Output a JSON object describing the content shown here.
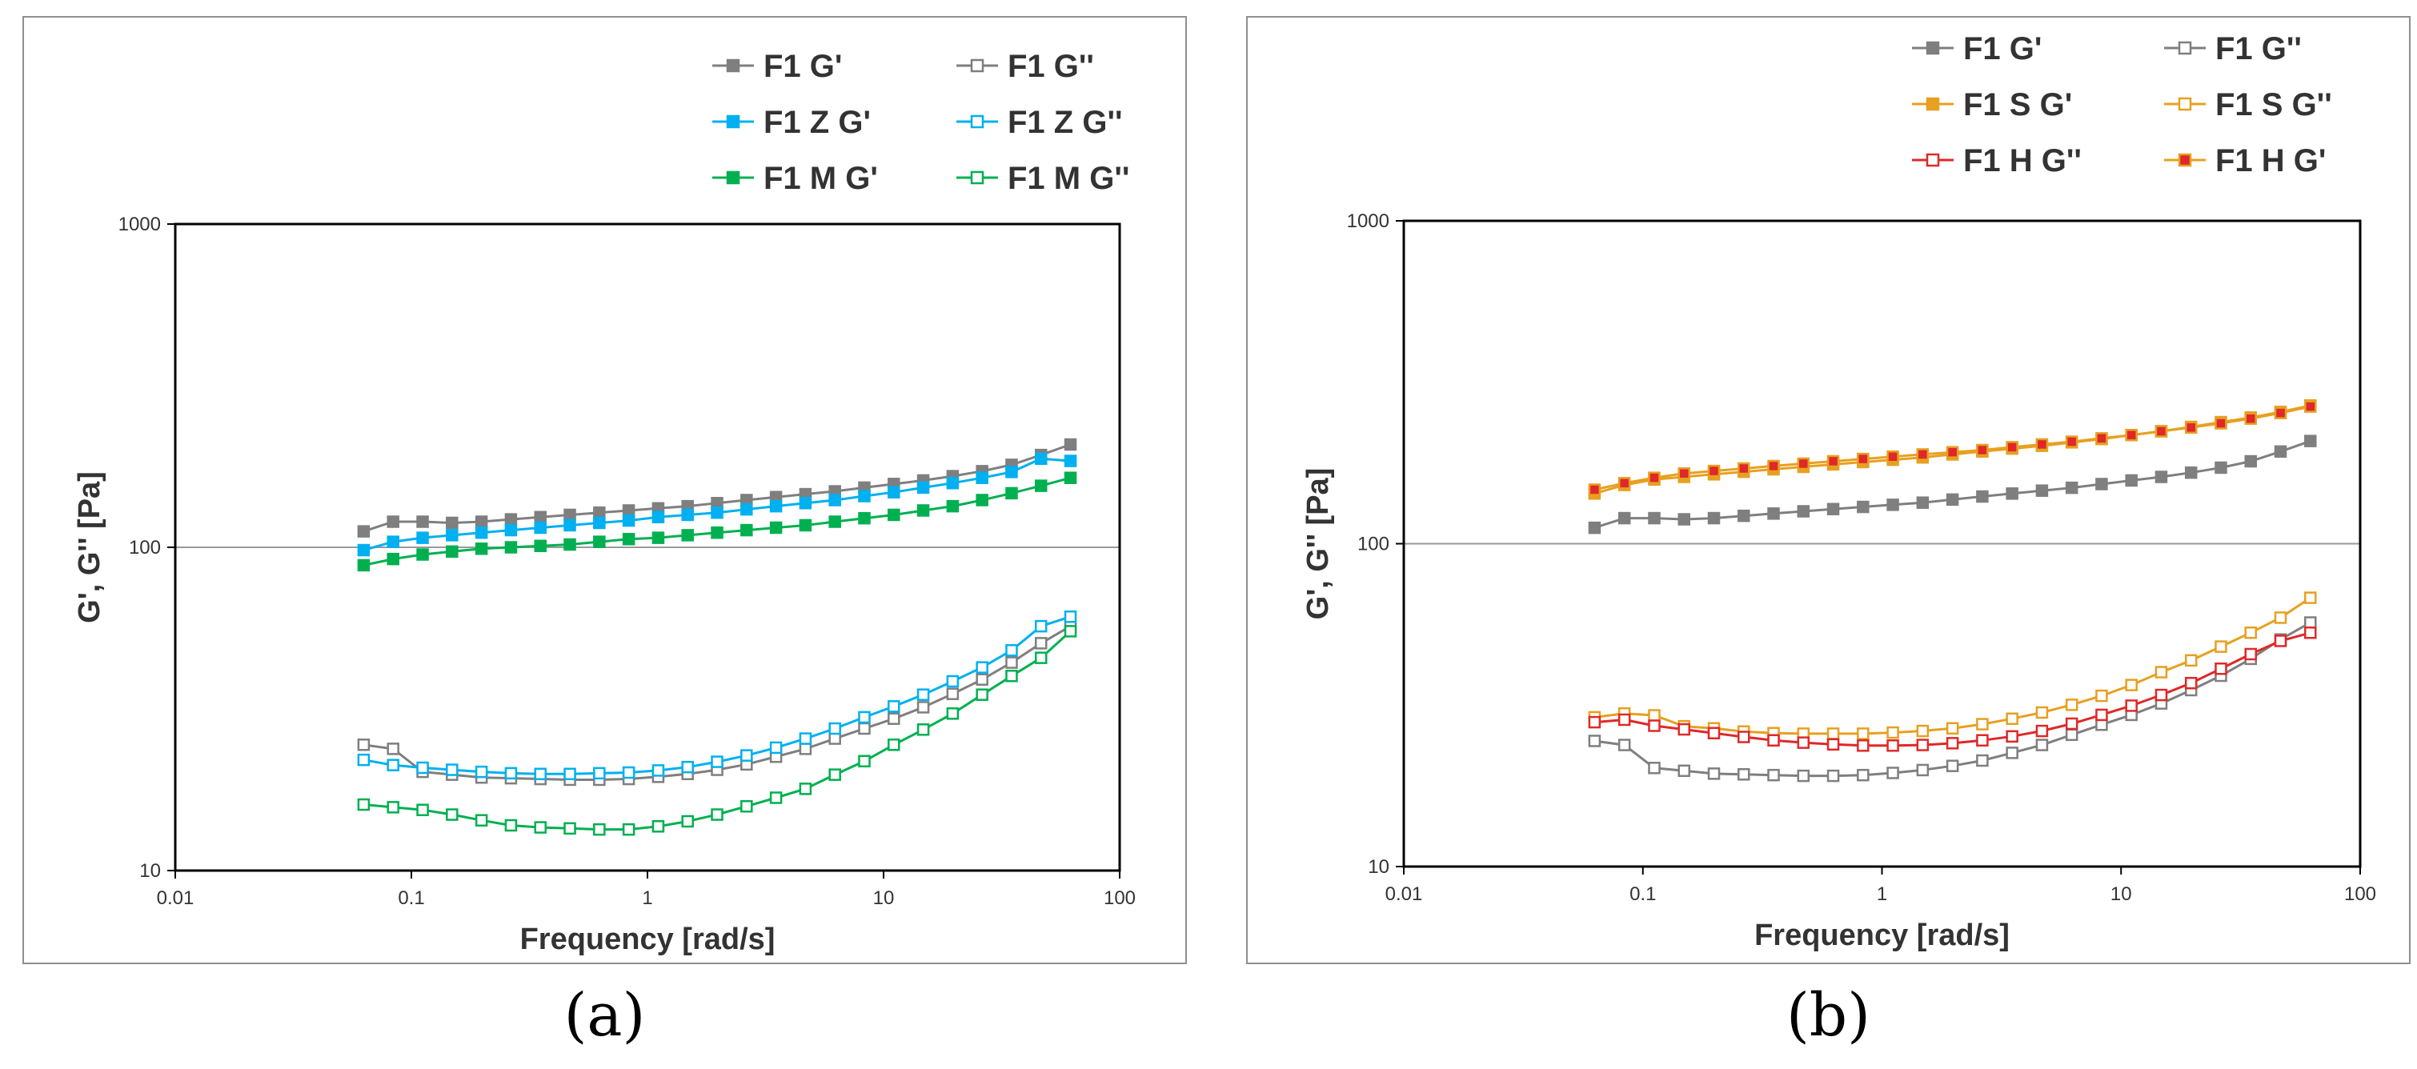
{
  "panels": [
    {
      "caption": "(a)",
      "chart_data": {
        "type": "line",
        "xscale": "log",
        "yscale": "log",
        "xlim": [
          0.01,
          100
        ],
        "ylim": [
          10,
          1000
        ],
        "xlabel": "Frequency [rad/s]",
        "ylabel": "G', G'' [Pa]",
        "x_ticks": [
          "0.01",
          "0.1",
          "1",
          "10",
          "100"
        ],
        "y_ticks": [
          "10",
          "100",
          "1000"
        ],
        "gridlines_y": [
          100
        ],
        "legend_position": "top-right",
        "x": [
          0.0628,
          0.0837,
          0.1116,
          0.1487,
          0.1982,
          0.2641,
          0.352,
          0.4691,
          0.6252,
          0.8332,
          1.1104,
          1.4798,
          1.9722,
          2.6283,
          3.5028,
          4.6681,
          6.2212,
          8.291,
          11.049,
          14.725,
          19.624,
          26.153,
          34.854,
          46.45,
          61.904
        ],
        "series": [
          {
            "name": "F1 G'",
            "color": "#7f7f7f",
            "filled": true,
            "values": [
              112,
              120,
              120,
              119,
              120,
              122,
              124,
              126,
              128,
              130,
              132,
              134,
              137,
              140,
              143,
              146,
              149,
              153,
              157,
              161,
              166,
              172,
              180,
              193,
              208
            ]
          },
          {
            "name": "F1 G''",
            "color": "#7f7f7f",
            "filled": false,
            "values": [
              24.5,
              23.8,
              20.2,
              19.8,
              19.4,
              19.3,
              19.2,
              19.1,
              19.1,
              19.2,
              19.5,
              19.9,
              20.5,
              21.3,
              22.5,
              23.8,
              25.6,
              27.5,
              29.5,
              32,
              35.2,
              39,
              44,
              50.5,
              57
            ]
          },
          {
            "name": "F1 Z G'",
            "color": "#00b0f0",
            "filled": true,
            "values": [
              98,
              104,
              107,
              109,
              111,
              113,
              115,
              117,
              119,
              121,
              124,
              126,
              128,
              131,
              134,
              137,
              140,
              144,
              148,
              153,
              158,
              164,
              171,
              188,
              185
            ]
          },
          {
            "name": "F1 Z G''",
            "color": "#00b0f0",
            "filled": false,
            "values": [
              22,
              21.2,
              20.8,
              20.5,
              20.2,
              20.0,
              19.9,
              19.9,
              20.0,
              20.1,
              20.4,
              20.9,
              21.7,
              22.7,
              24,
              25.6,
              27.5,
              29.8,
              32.2,
              35,
              38.5,
              42.5,
              48,
              57,
              61
            ]
          },
          {
            "name": "F1 M G'",
            "color": "#00b050",
            "filled": true,
            "values": [
              88,
              92,
              95,
              97,
              99,
              100,
              101,
              102,
              104,
              106,
              107,
              109,
              111,
              113,
              115,
              117,
              120,
              123,
              126,
              130,
              134,
              140,
              147,
              155,
              164
            ]
          },
          {
            "name": "F1 M G''",
            "color": "#00b050",
            "filled": false,
            "values": [
              16,
              15.7,
              15.4,
              14.9,
              14.3,
              13.8,
              13.6,
              13.5,
              13.4,
              13.4,
              13.7,
              14.2,
              14.9,
              15.8,
              16.8,
              17.9,
              19.8,
              21.8,
              24.5,
              27.3,
              30.6,
              35,
              40,
              45.5,
              55
            ]
          }
        ],
        "legend_order": [
          0,
          1,
          2,
          3,
          4,
          5
        ]
      }
    },
    {
      "caption": "(b)",
      "chart_data": {
        "type": "line",
        "xscale": "log",
        "yscale": "log",
        "xlim": [
          0.01,
          100
        ],
        "ylim": [
          10,
          1000
        ],
        "xlabel": "Frequency [rad/s]",
        "ylabel": "G', G'' [Pa]",
        "x_ticks": [
          "0.01",
          "0.1",
          "1",
          "10",
          "100"
        ],
        "y_ticks": [
          "10",
          "100",
          "1000"
        ],
        "gridlines_y": [
          100
        ],
        "legend_position": "top-right",
        "x": [
          0.0628,
          0.0837,
          0.1116,
          0.1487,
          0.1982,
          0.2641,
          0.352,
          0.4691,
          0.6252,
          0.8332,
          1.1104,
          1.4798,
          1.9722,
          2.6283,
          3.5028,
          4.6681,
          6.2212,
          8.291,
          11.049,
          14.725,
          19.624,
          26.153,
          34.854,
          46.45,
          61.904
        ],
        "series": [
          {
            "name": "F1 G'",
            "color": "#7f7f7f",
            "filled": true,
            "fill": "#7f7f7f",
            "values": [
              112,
              120,
              120,
              119,
              120,
              122,
              124,
              126,
              128,
              130,
              132,
              134,
              137,
              140,
              143,
              146,
              149,
              153,
              157,
              161,
              166,
              172,
              180,
              193,
              208
            ]
          },
          {
            "name": "F1 G''",
            "color": "#7f7f7f",
            "filled": false,
            "fill": "#ffffff",
            "values": [
              24.5,
              23.8,
              20.2,
              19.8,
              19.4,
              19.3,
              19.2,
              19.1,
              19.1,
              19.2,
              19.5,
              19.9,
              20.5,
              21.3,
              22.5,
              23.8,
              25.6,
              27.5,
              29.5,
              32,
              35.2,
              39,
              44,
              50.5,
              57
            ]
          },
          {
            "name": "F1 S G'",
            "color": "#e7a020",
            "filled": true,
            "fill": "#e7a020",
            "values": [
              143,
              152,
              158,
              161,
              164,
              167,
              170,
              173,
              176,
              179,
              182,
              185,
              189,
              193,
              197,
              201,
              206,
              211,
              217,
              223,
              230,
              238,
              246,
              256,
              268
            ]
          },
          {
            "name": "F1 S G''",
            "color": "#e7a020",
            "filled": false,
            "fill": "#ffffff",
            "values": [
              29,
              29.8,
              29.4,
              27.2,
              26.8,
              26.2,
              25.9,
              25.8,
              25.8,
              25.8,
              26.0,
              26.3,
              26.8,
              27.6,
              28.7,
              30,
              31.7,
              33.8,
              36.5,
              40,
              43.5,
              48,
              53,
              59,
              68
            ]
          },
          {
            "name": "F1 H G''",
            "color": "#e02828",
            "filled": false,
            "fill": "#ffffff",
            "values": [
              28,
              28.5,
              27.3,
              26.6,
              25.9,
              25.2,
              24.6,
              24.2,
              23.9,
              23.7,
              23.7,
              23.8,
              24.1,
              24.6,
              25.3,
              26.3,
              27.7,
              29.5,
              31.5,
              34,
              37,
              41,
              45.5,
              50,
              53
            ]
          },
          {
            "name": "F1 H G'",
            "color": "#e7a020",
            "filled": true,
            "fill": "#e02828",
            "values": [
              147,
              154,
              160,
              165,
              168,
              171,
              174,
              177,
              180,
              183,
              186,
              189,
              192,
              195,
              199,
              203,
              207,
              212,
              217,
              223,
              229,
              236,
              244,
              254,
              266
            ]
          }
        ],
        "legend_order": [
          0,
          1,
          2,
          3,
          4,
          5
        ]
      }
    }
  ]
}
